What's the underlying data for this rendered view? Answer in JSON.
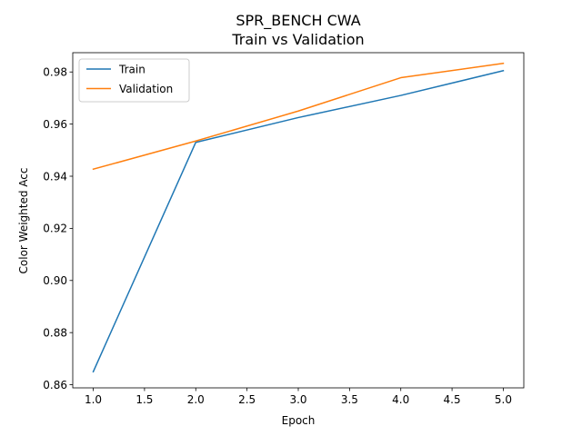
{
  "chart_data": {
    "type": "line",
    "title": "SPR_BENCH CWA",
    "subtitle": "Train vs Validation",
    "xlabel": "Epoch",
    "ylabel": "Color Weighted Acc",
    "x": [
      1,
      2,
      3,
      4,
      5
    ],
    "series": [
      {
        "name": "Train",
        "color": "#1f77b4",
        "values": [
          0.865,
          0.953,
          0.9625,
          0.971,
          0.9805
        ]
      },
      {
        "name": "Validation",
        "color": "#ff7f0e",
        "values": [
          0.9427,
          0.9535,
          0.965,
          0.9778,
          0.9833
        ]
      }
    ],
    "xlim": [
      0.8,
      5.2
    ],
    "ylim": [
      0.8588,
      0.9874
    ],
    "xticks": [
      "1.0",
      "1.5",
      "2.0",
      "2.5",
      "3.0",
      "3.5",
      "4.0",
      "4.5",
      "5.0"
    ],
    "yticks": [
      "0.86",
      "0.88",
      "0.90",
      "0.92",
      "0.94",
      "0.96",
      "0.98"
    ],
    "grid": false,
    "legend_position": "top-left"
  }
}
